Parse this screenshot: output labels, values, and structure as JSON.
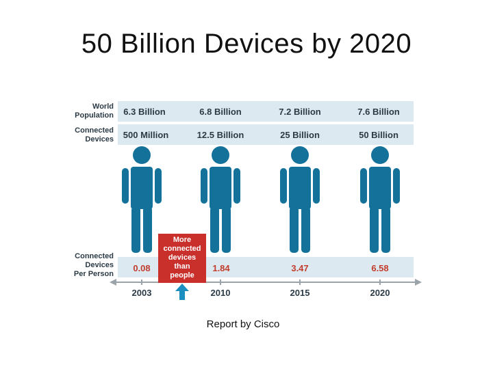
{
  "slide": {
    "title": "50 Billion Devices by 2020",
    "caption": "Report by Cisco"
  },
  "row_labels": {
    "world_population": [
      "World",
      "Population"
    ],
    "connected_devices": [
      "Connected",
      "Devices"
    ],
    "devices_per_person": [
      "Connected",
      "Devices",
      "Per Person"
    ]
  },
  "callout": {
    "lines": [
      "More",
      "connected",
      "devices",
      "than",
      "people"
    ]
  },
  "chart_data": {
    "type": "table",
    "years": [
      "2003",
      "2010",
      "2015",
      "2020"
    ],
    "world_population_labels": [
      "6.3 Billion",
      "6.8 Billion",
      "7.2 Billion",
      "7.6 Billion"
    ],
    "connected_devices_labels": [
      "500 Million",
      "12.5 Billion",
      "25 Billion",
      "50 Billion"
    ],
    "devices_per_person": [
      0.08,
      1.84,
      3.47,
      6.58
    ],
    "devices_per_person_labels": [
      "0.08",
      "1.84",
      "3.47",
      "6.58"
    ]
  },
  "colors": {
    "person": "#14729a",
    "band": "#dce9f1",
    "callout": "#c9302c",
    "per_person_text": "#c23b2c",
    "arrow": "#1a8fc0"
  },
  "icons": {
    "person": "person-icon",
    "arrow": "up-arrow-icon"
  }
}
